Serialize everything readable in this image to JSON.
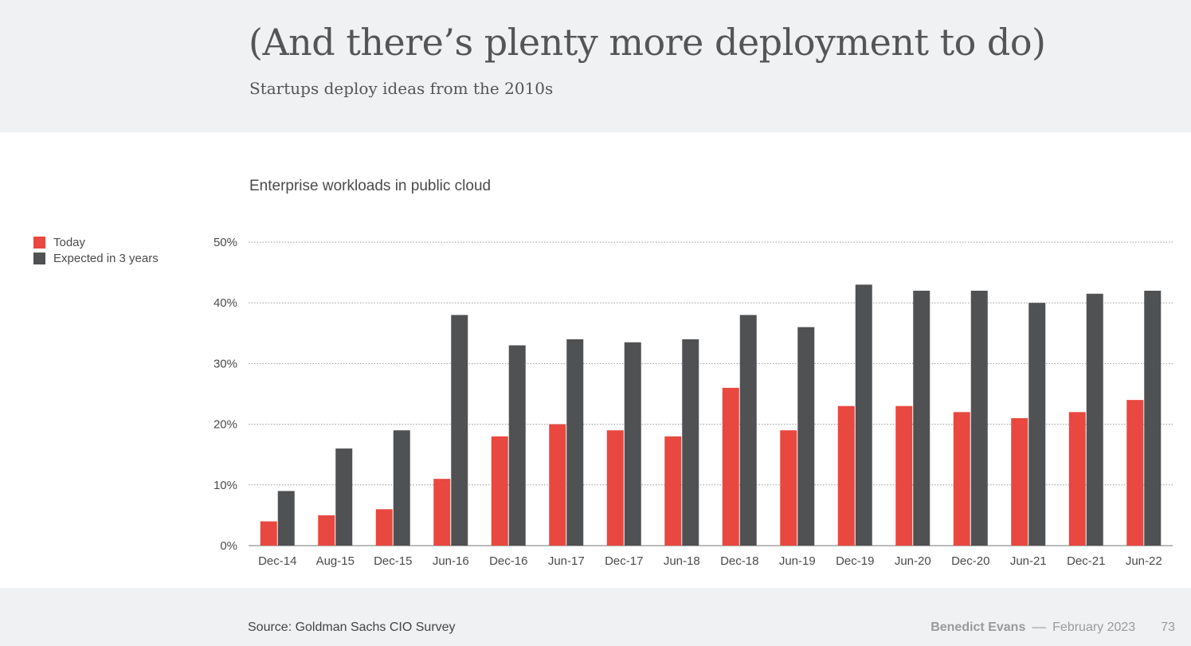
{
  "header": {
    "title": "(And there’s plenty more deployment to do)",
    "subtitle": "Startups deploy ideas from the 2010s"
  },
  "footer": {
    "source": "Source: Goldman Sachs CIO Survey",
    "author": "Benedict Evans",
    "separator": "––",
    "date": "February 2023",
    "page": "73"
  },
  "colors": {
    "today": "#e8483f",
    "expected": "#505153",
    "background": "#f0f1f3"
  },
  "chart_data": {
    "type": "bar",
    "title": "Enterprise workloads in public cloud",
    "xlabel": "",
    "ylabel": "",
    "ylim": [
      0,
      50
    ],
    "yticks": [
      "0%",
      "10%",
      "20%",
      "30%",
      "40%",
      "50%"
    ],
    "grid": true,
    "legend_position": "top-left",
    "categories": [
      "Dec-14",
      "Aug-15",
      "Dec-15",
      "Jun-16",
      "Dec-16",
      "Jun-17",
      "Dec-17",
      "Jun-18",
      "Dec-18",
      "Jun-19",
      "Dec-19",
      "Jun-20",
      "Dec-20",
      "Jun-21",
      "Dec-21",
      "Jun-22"
    ],
    "series": [
      {
        "name": "Today",
        "values": [
          4,
          5,
          6,
          11,
          18,
          20,
          19,
          18,
          26,
          19,
          23,
          23,
          22,
          21,
          22,
          24
        ]
      },
      {
        "name": "Expected in 3 years",
        "values": [
          9,
          16,
          19,
          38,
          33,
          34,
          33.5,
          34,
          38,
          36,
          43,
          42,
          42,
          40,
          41.5,
          42
        ]
      }
    ]
  }
}
